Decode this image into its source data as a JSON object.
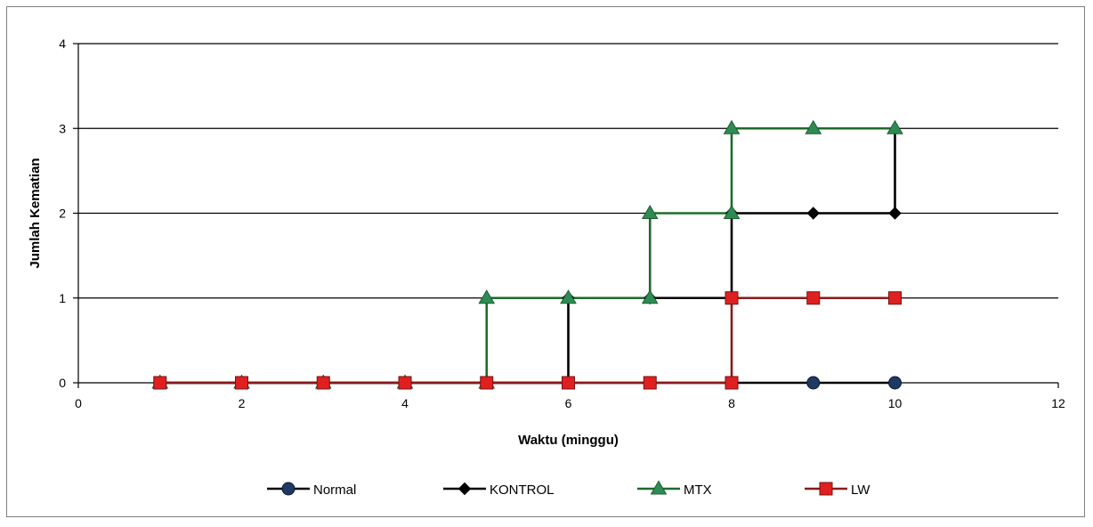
{
  "chart_data": {
    "type": "line",
    "step": true,
    "xlabel": "Waktu (minggu)",
    "ylabel": "Jumlah Kematian",
    "xlim": [
      0,
      12
    ],
    "ylim": [
      0,
      4
    ],
    "xticks": [
      0,
      2,
      4,
      6,
      8,
      10,
      12
    ],
    "yticks": [
      0,
      1,
      2,
      3,
      4
    ],
    "grid": "horizontal",
    "legend_position": "bottom",
    "series": [
      {
        "name": "Normal",
        "marker": "circle",
        "color": "#000000",
        "marker_color": "#1f3864",
        "points": [
          [
            1,
            0
          ],
          [
            2,
            0
          ],
          [
            3,
            0
          ],
          [
            4,
            0
          ],
          [
            5,
            0
          ],
          [
            6,
            0
          ],
          [
            7,
            0
          ],
          [
            8,
            0
          ],
          [
            9,
            0
          ],
          [
            10,
            0
          ]
        ]
      },
      {
        "name": "KONTROL",
        "marker": "diamond",
        "color": "#000000",
        "marker_color": "#000000",
        "points": [
          [
            1,
            0
          ],
          [
            2,
            0
          ],
          [
            3,
            0
          ],
          [
            4,
            0
          ],
          [
            5,
            0
          ],
          [
            6,
            0
          ],
          [
            6,
            1
          ],
          [
            7,
            1
          ],
          [
            8,
            1
          ],
          [
            8,
            2
          ],
          [
            9,
            2
          ],
          [
            10,
            2
          ]
        ]
      },
      {
        "name": "MTX",
        "marker": "triangle",
        "color": "#1e6b2a",
        "marker_color": "#2e8b57",
        "points": [
          [
            1,
            0
          ],
          [
            2,
            0
          ],
          [
            3,
            0
          ],
          [
            4,
            0
          ],
          [
            5,
            0
          ],
          [
            5,
            1
          ],
          [
            6,
            1
          ],
          [
            7,
            1
          ],
          [
            7,
            2
          ],
          [
            8,
            2
          ],
          [
            8,
            3
          ],
          [
            9,
            3
          ],
          [
            10,
            3
          ]
        ]
      },
      {
        "name": "LW",
        "marker": "square",
        "color": "#8b1a1a",
        "marker_color": "#e02020",
        "points": [
          [
            1,
            0
          ],
          [
            2,
            0
          ],
          [
            3,
            0
          ],
          [
            4,
            0
          ],
          [
            5,
            0
          ],
          [
            6,
            0
          ],
          [
            7,
            0
          ],
          [
            8,
            0
          ],
          [
            8,
            1
          ],
          [
            9,
            1
          ],
          [
            10,
            1
          ]
        ]
      }
    ],
    "extra_segments": [
      {
        "series": "KONTROL",
        "from": [
          10,
          2
        ],
        "to": [
          10,
          3
        ]
      }
    ]
  }
}
